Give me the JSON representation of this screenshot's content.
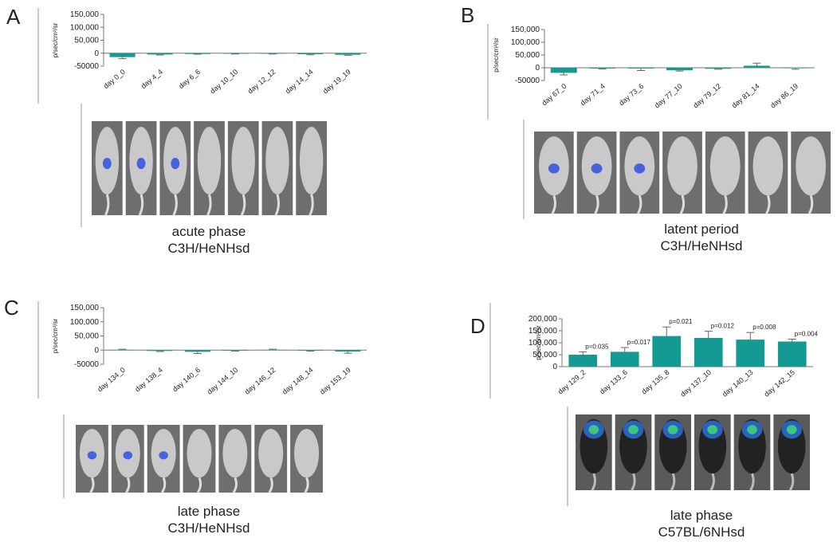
{
  "chart_data": [
    {
      "panel": "A",
      "type": "bar",
      "y_label": "p/sec/cm²/sr",
      "categories": [
        "day 0_0",
        "day 4_4",
        "day 6_6",
        "day 10_10",
        "day 12_12",
        "day 14_14",
        "day 19_19"
      ],
      "values": [
        -15000,
        -5000,
        -3000,
        -2000,
        -2000,
        -4000,
        -6000
      ],
      "errors": [
        6000,
        2000,
        1000,
        1000,
        1000,
        2000,
        2000
      ],
      "color": "#159a93",
      "ylim": [
        -50000,
        150000
      ],
      "yticks": [
        -50000,
        0,
        {
          "value": 50000,
          "label": "50,000"
        },
        {
          "value": 100000,
          "label": "100,000"
        },
        {
          "value": 150000,
          "label": "150,000"
        }
      ],
      "caption": [
        "acute phase",
        "C3H/HeNHsd"
      ]
    },
    {
      "panel": "B",
      "type": "bar",
      "y_label": "p/sec/cm²/sr",
      "categories": [
        "day 67_0",
        "day 71_4",
        "day 73_6",
        "day 77_10",
        "day 79_12",
        "day 81_14",
        "day 86_19"
      ],
      "values": [
        -20000,
        -3000,
        -3000,
        -10000,
        -4000,
        8000,
        -2000
      ],
      "errors": [
        8000,
        2000,
        8000,
        3000,
        2000,
        10000,
        4000
      ],
      "color": "#159a93",
      "ylim": [
        -50000,
        150000
      ],
      "yticks": [
        -50000,
        0,
        {
          "value": 50000,
          "label": "50,000"
        },
        {
          "value": 100000,
          "label": "100,000"
        },
        {
          "value": 150000,
          "label": "150,000"
        }
      ],
      "caption": [
        "latent period",
        "C3H/HeNHsd"
      ]
    },
    {
      "panel": "C",
      "type": "bar",
      "y_label": "p/sec/cm²/sr",
      "categories": [
        "day 134_0",
        "day 138_4",
        "day 140_6",
        "day 144_10",
        "day 146_12",
        "day 148_14",
        "day 153_19"
      ],
      "values": [
        1000,
        -3000,
        -6000,
        -2000,
        1000,
        -2000,
        -5000
      ],
      "errors": [
        2000,
        2000,
        6000,
        2000,
        2000,
        2000,
        6000
      ],
      "color": "#159a93",
      "ylim": [
        -50000,
        150000
      ],
      "yticks": [
        -50000,
        0,
        {
          "value": 50000,
          "label": "50,000"
        },
        {
          "value": 100000,
          "label": "100,000"
        },
        {
          "value": 150000,
          "label": "150,000"
        }
      ],
      "caption": [
        "late phase",
        "C3H/HeNHsd"
      ]
    },
    {
      "panel": "D",
      "type": "bar",
      "y_label": "p/sec/cm²/sr",
      "categories": [
        "day 129_2",
        "day 133_6",
        "day 135_8",
        "day 137_10",
        "day 140_13",
        "day 142_15"
      ],
      "values": [
        50000,
        62000,
        128000,
        120000,
        113000,
        105000
      ],
      "errors": [
        12000,
        18000,
        38000,
        28000,
        30000,
        10000
      ],
      "annotations": [
        "p=0.035",
        "p=0.017",
        "p=0.021",
        "p=0.012",
        "p=0.008",
        "p=0.004"
      ],
      "color": "#159a93",
      "ylim": [
        0,
        200000
      ],
      "yticks": [
        0,
        {
          "value": 50000,
          "label": "50,000"
        },
        {
          "value": 100000,
          "label": "100,000"
        },
        {
          "value": 150000,
          "label": "150,000"
        },
        {
          "value": 200000,
          "label": "200,000"
        }
      ],
      "caption": [
        "late phase",
        "C57BL/6NHsd"
      ]
    }
  ]
}
